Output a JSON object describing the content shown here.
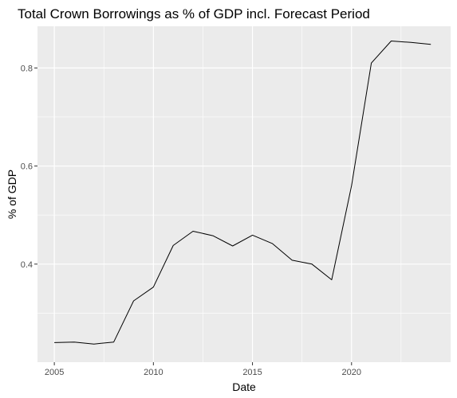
{
  "chart_data": {
    "type": "line",
    "title": "Total Crown Borrowings as % of GDP incl. Forecast Period",
    "xlabel": "Date",
    "ylabel": "% of GDP",
    "xlim": [
      2004.15,
      2025.0
    ],
    "ylim": [
      0.2,
      0.885
    ],
    "x_ticks": [
      2005,
      2010,
      2015,
      2020
    ],
    "y_ticks": [
      0.4,
      0.6,
      0.8
    ],
    "x_tick_labels": [
      "2005",
      "2010",
      "2015",
      "2020"
    ],
    "y_tick_labels": [
      "0.4",
      "0.6",
      "0.8"
    ],
    "grid": true,
    "legend": "none",
    "colors": {
      "panel": "#ebebeb",
      "grid": "#ffffff",
      "line": "#000000",
      "tick_text": "#4d4d4d"
    },
    "series": [
      {
        "x": [
          2005,
          2006,
          2007,
          2008,
          2009,
          2010,
          2011,
          2012,
          2013,
          2014,
          2015,
          2016,
          2017,
          2018,
          2019,
          2020,
          2021,
          2022,
          2023,
          2024
        ],
        "y": [
          0.24,
          0.241,
          0.237,
          0.241,
          0.325,
          0.353,
          0.438,
          0.467,
          0.458,
          0.437,
          0.459,
          0.442,
          0.408,
          0.4,
          0.368,
          0.56,
          0.81,
          0.855,
          0.852,
          0.848
        ]
      }
    ]
  }
}
